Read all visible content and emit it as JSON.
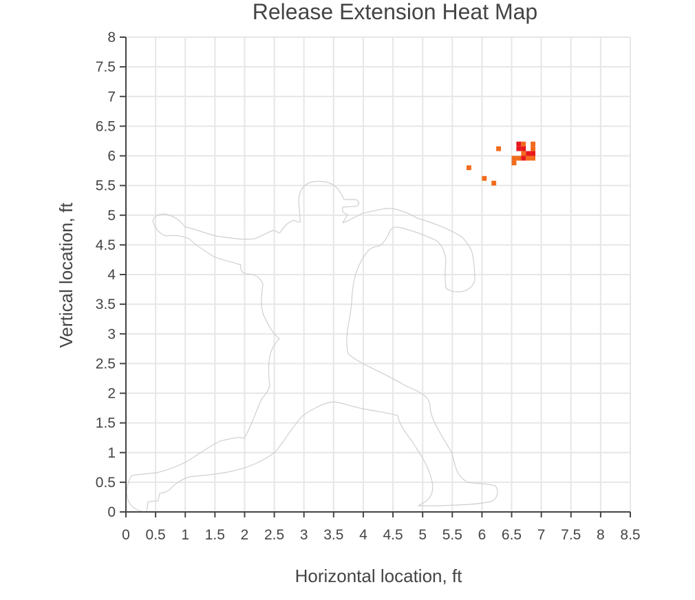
{
  "chart_data": {
    "type": "heatmap",
    "title": "Release Extension Heat Map",
    "xlabel": "Horizontal location, ft",
    "ylabel": "Vertical location, ft",
    "xlim": [
      0,
      8.5
    ],
    "ylim": [
      0,
      8
    ],
    "x_ticks": [
      "0",
      "0.5",
      "1",
      "1.5",
      "2",
      "2.5",
      "3",
      "3.5",
      "4",
      "4.5",
      "5",
      "5.5",
      "6",
      "6.5",
      "7",
      "7.5",
      "8",
      "8.5"
    ],
    "y_ticks": [
      "0",
      "0.5",
      "1",
      "1.5",
      "2",
      "2.5",
      "3",
      "3.5",
      "4",
      "4.5",
      "5",
      "5.5",
      "6",
      "6.5",
      "7",
      "7.5",
      "8"
    ],
    "grid": true,
    "cell_size_ft": 0.08,
    "colors": {
      "low": "#f26b1d",
      "mid": "#f24a1a",
      "high": "#e8171c"
    },
    "background_figure": "pitcher-silhouette",
    "cells": [
      {
        "x": 5.78,
        "y": 5.8,
        "level": "low"
      },
      {
        "x": 6.04,
        "y": 5.62,
        "level": "low"
      },
      {
        "x": 6.2,
        "y": 5.54,
        "level": "low"
      },
      {
        "x": 6.28,
        "y": 6.12,
        "level": "low"
      },
      {
        "x": 6.54,
        "y": 5.88,
        "level": "low"
      },
      {
        "x": 6.54,
        "y": 5.96,
        "level": "low"
      },
      {
        "x": 6.62,
        "y": 5.96,
        "level": "low"
      },
      {
        "x": 6.62,
        "y": 6.12,
        "level": "high"
      },
      {
        "x": 6.62,
        "y": 6.2,
        "level": "high"
      },
      {
        "x": 6.7,
        "y": 6.2,
        "level": "low"
      },
      {
        "x": 6.7,
        "y": 6.12,
        "level": "high"
      },
      {
        "x": 6.7,
        "y": 6.04,
        "level": "low"
      },
      {
        "x": 6.7,
        "y": 5.96,
        "level": "high"
      },
      {
        "x": 6.78,
        "y": 6.04,
        "level": "high"
      },
      {
        "x": 6.78,
        "y": 5.96,
        "level": "low"
      },
      {
        "x": 6.86,
        "y": 6.2,
        "level": "low"
      },
      {
        "x": 6.86,
        "y": 6.12,
        "level": "low"
      },
      {
        "x": 6.86,
        "y": 6.04,
        "level": "high"
      },
      {
        "x": 6.86,
        "y": 5.96,
        "level": "low"
      }
    ]
  }
}
